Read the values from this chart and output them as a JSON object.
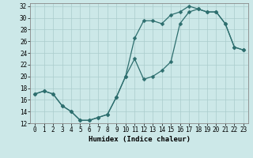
{
  "xlabel": "Humidex (Indice chaleur)",
  "bg_color": "#cce8e8",
  "line_color": "#2d6e6e",
  "marker": "D",
  "markersize": 2.5,
  "linewidth": 0.9,
  "line1_x": [
    0,
    1,
    2,
    3,
    4,
    5,
    6,
    7,
    8,
    9,
    10,
    11,
    12,
    13,
    14,
    15,
    16,
    17,
    18,
    19,
    20,
    21,
    22,
    23
  ],
  "line1_y": [
    17,
    17.5,
    17,
    15,
    14,
    12.5,
    12.5,
    13,
    13.5,
    16.5,
    20,
    23,
    19.5,
    20,
    21,
    22.5,
    29,
    31,
    31.5,
    31,
    31,
    29,
    25,
    24.5
  ],
  "line2_x": [
    0,
    1,
    2,
    3,
    4,
    5,
    6,
    7,
    8,
    9,
    10,
    11,
    12,
    13,
    14,
    15,
    16,
    17,
    18,
    19,
    20,
    21,
    22,
    23
  ],
  "line2_y": [
    17,
    17.5,
    17,
    15,
    14,
    12.5,
    12.5,
    13,
    13.5,
    16.5,
    20,
    26.5,
    29.5,
    29.5,
    29,
    30.5,
    31,
    32,
    31.5,
    31,
    31,
    29,
    25,
    24.5
  ],
  "xlim": [
    -0.5,
    23.5
  ],
  "ylim": [
    12,
    32.5
  ],
  "xticks": [
    0,
    1,
    2,
    3,
    4,
    5,
    6,
    7,
    8,
    9,
    10,
    11,
    12,
    13,
    14,
    15,
    16,
    17,
    18,
    19,
    20,
    21,
    22,
    23
  ],
  "yticks": [
    12,
    14,
    16,
    18,
    20,
    22,
    24,
    26,
    28,
    30,
    32
  ],
  "grid_color": "#aacccc",
  "label_fontsize": 6.5,
  "tick_fontsize": 5.5
}
